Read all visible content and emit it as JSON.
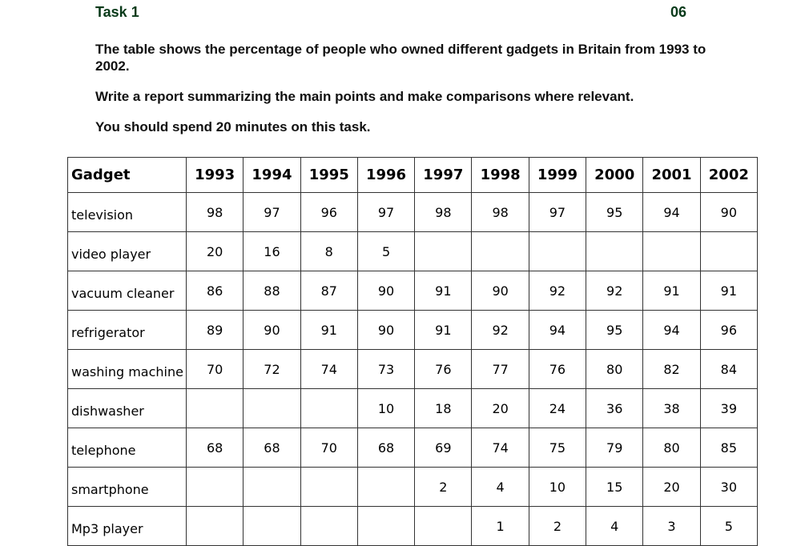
{
  "header": {
    "task_title": "Task 1",
    "task_number": "06"
  },
  "instructions": {
    "p1": "The table shows the percentage of people who owned different gadgets in Britain from 1993 to 2002.",
    "p2": "Write a report summarizing the main points and make comparisons where relevant.",
    "p3": "You should spend 20 minutes on this task."
  },
  "table": {
    "columns": [
      "Gadget",
      "1993",
      "1994",
      "1995",
      "1996",
      "1997",
      "1998",
      "1999",
      "2000",
      "2001",
      "2002"
    ],
    "rows": [
      [
        "television",
        "98",
        "97",
        "96",
        "97",
        "98",
        "98",
        "97",
        "95",
        "94",
        "90"
      ],
      [
        "video player",
        "20",
        "16",
        "8",
        "5",
        "",
        "",
        "",
        "",
        "",
        ""
      ],
      [
        "vacuum cleaner",
        "86",
        "88",
        "87",
        "90",
        "91",
        "90",
        "92",
        "92",
        "91",
        "91"
      ],
      [
        "refrigerator",
        "89",
        "90",
        "91",
        "90",
        "91",
        "92",
        "94",
        "95",
        "94",
        "96"
      ],
      [
        "washing machine",
        "70",
        "72",
        "74",
        "73",
        "76",
        "77",
        "76",
        "80",
        "82",
        "84"
      ],
      [
        "dishwasher",
        "",
        "",
        "",
        "10",
        "18",
        "20",
        "24",
        "36",
        "38",
        "39"
      ],
      [
        "telephone",
        "68",
        "68",
        "70",
        "68",
        "69",
        "74",
        "75",
        "79",
        "80",
        "85"
      ],
      [
        "smartphone",
        "",
        "",
        "",
        "",
        "2",
        "4",
        "10",
        "15",
        "20",
        "30"
      ],
      [
        "Mp3 player",
        "",
        "",
        "",
        "",
        "",
        "1",
        "2",
        "4",
        "3",
        "5"
      ]
    ]
  }
}
